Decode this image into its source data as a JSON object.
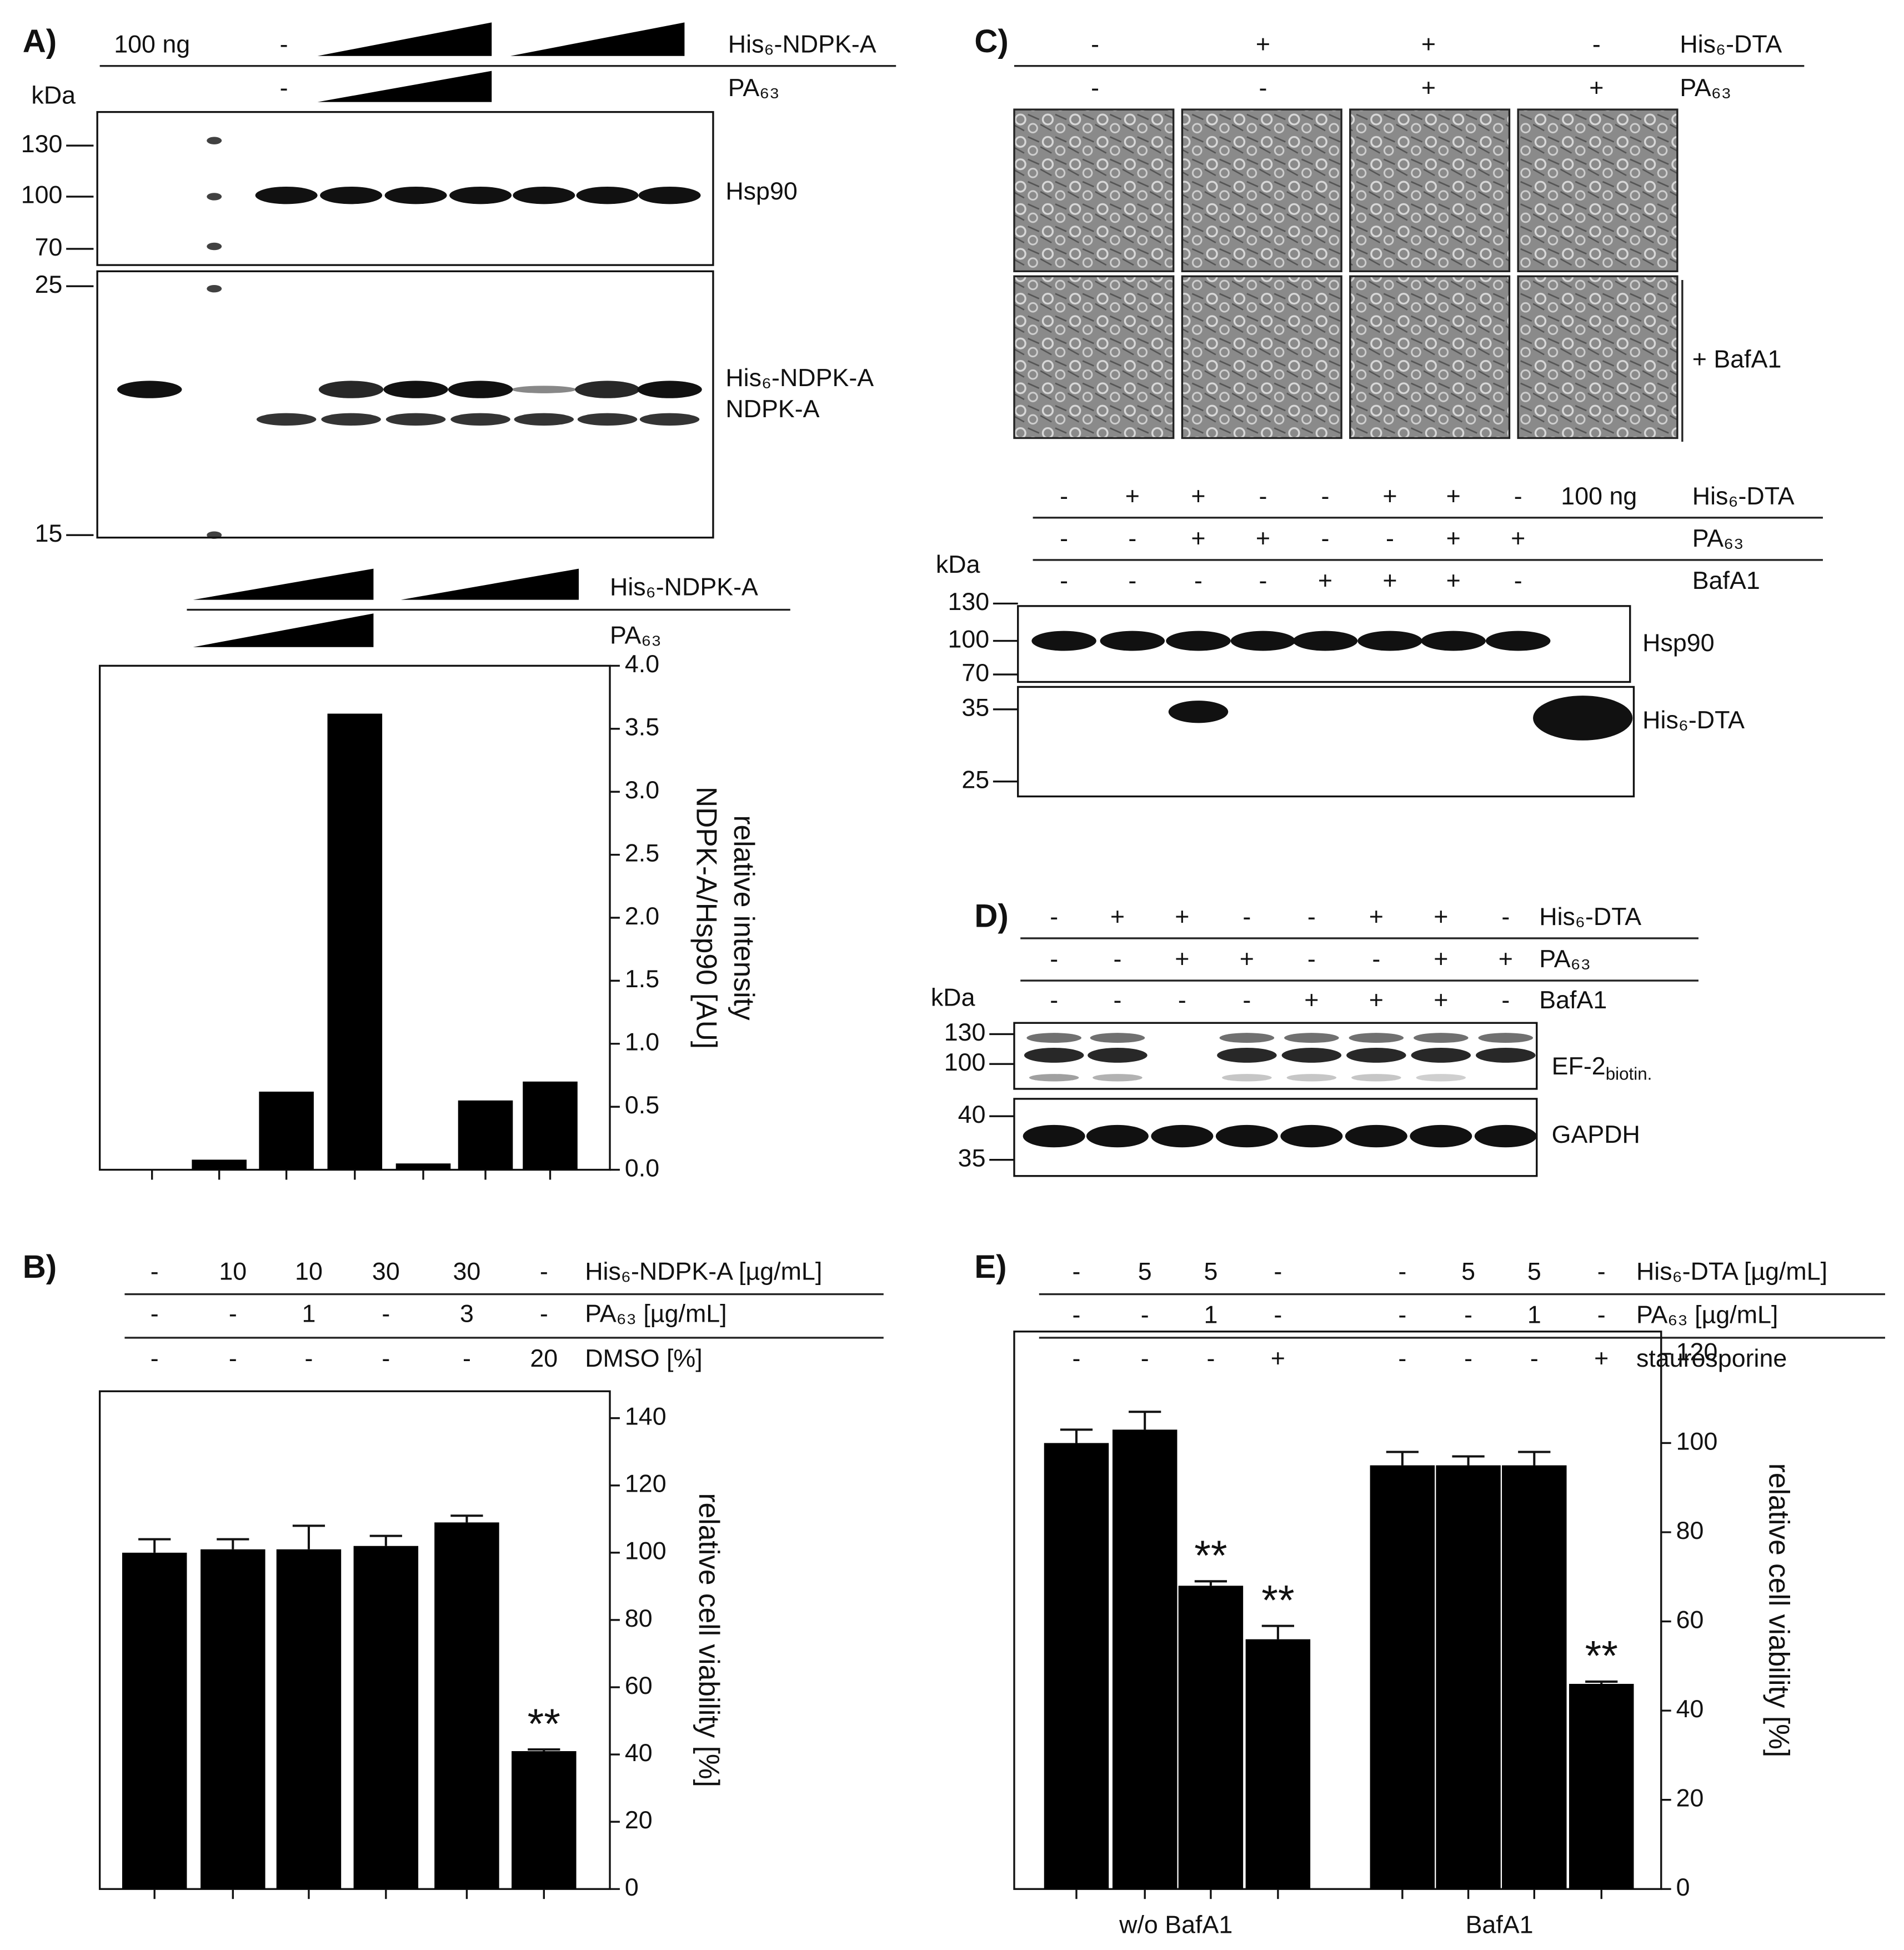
{
  "panel_a": {
    "label": "A)",
    "rows": [
      {
        "cells": [
          "100 ng",
          "-"
        ],
        "name": "His₆-NDPK-A"
      },
      {
        "cells": [
          "-"
        ],
        "name": "PA₆₃"
      }
    ],
    "kda": "kDa",
    "markers": [
      130,
      100,
      70,
      25,
      15
    ],
    "bands": [
      "Hsp90",
      "His₆-NDPK-A",
      "NDPK-A"
    ]
  },
  "chart_a_header": {
    "rows": [
      {
        "name": "His₆-NDPK-A"
      },
      {
        "name": "PA₆₃"
      }
    ]
  },
  "panel_b": {
    "label": "B)",
    "rows": [
      {
        "cells": [
          "-",
          "10",
          "10",
          "30",
          "30",
          "-"
        ],
        "name": "His₆-NDPK-A [µg/mL]"
      },
      {
        "cells": [
          "-",
          "-",
          "1",
          "-",
          "3",
          "-"
        ],
        "name": "PA₆₃ [µg/mL]"
      },
      {
        "cells": [
          "-",
          "-",
          "-",
          "-",
          "-",
          "20"
        ],
        "name": "DMSO  [%]"
      }
    ]
  },
  "panel_c": {
    "label": "C)",
    "rows": [
      {
        "cells": [
          "-",
          "+",
          "+",
          "-"
        ],
        "name": "His₆-DTA"
      },
      {
        "cells": [
          "-",
          "-",
          "+",
          "+"
        ],
        "name": "PA₆₃"
      }
    ],
    "side_label": "+ BafA1",
    "blot_rows": [
      {
        "cells": [
          "-",
          "+",
          "+",
          "-",
          "-",
          "+",
          "+",
          "-",
          "100 ng"
        ],
        "name": "His₆-DTA"
      },
      {
        "cells": [
          "-",
          "-",
          "+",
          "+",
          "-",
          "-",
          "+",
          "+"
        ],
        "name": "PA₆₃"
      },
      {
        "cells": [
          "-",
          "-",
          "-",
          "-",
          "+",
          "+",
          "+",
          "-"
        ],
        "name": "BafA1"
      }
    ],
    "kda": "kDa",
    "markers": [
      130,
      100,
      70,
      35,
      25
    ],
    "bands": [
      "Hsp90",
      "His₆-DTA"
    ]
  },
  "panel_d": {
    "label": "D)",
    "rows": [
      {
        "cells": [
          "-",
          "+",
          "+",
          "-",
          "-",
          "+",
          "+",
          "-"
        ],
        "name": "His₆-DTA"
      },
      {
        "cells": [
          "-",
          "-",
          "+",
          "+",
          "-",
          "-",
          "+",
          "+"
        ],
        "name": "PA₆₃"
      },
      {
        "cells": [
          "-",
          "-",
          "-",
          "-",
          "+",
          "+",
          "+",
          "-"
        ],
        "name": "BafA1"
      }
    ],
    "kda": "kDa",
    "markers": [
      130,
      100,
      40,
      35
    ],
    "bands": [
      {
        "text": "EF-2",
        "sub": "biotin."
      },
      "GAPDH"
    ]
  },
  "panel_e": {
    "label": "E)",
    "rows": [
      {
        "cells": [
          "-",
          "5",
          "5",
          "-",
          "-",
          "5",
          "5",
          "-"
        ],
        "name": "His₆-DTA [µg/mL]"
      },
      {
        "cells": [
          "-",
          "-",
          "1",
          "-",
          "-",
          "-",
          "1",
          "-"
        ],
        "name": "PA₆₃ [µg/mL]"
      },
      {
        "cells": [
          "-",
          "-",
          "-",
          "+",
          "-",
          "-",
          "-",
          "+"
        ],
        "name": "staurosporine"
      }
    ]
  },
  "chart_data": [
    {
      "type": "bar",
      "categories": [
        null,
        null,
        null,
        null,
        null,
        null,
        null
      ],
      "values": [
        0,
        0.08,
        0.62,
        3.62,
        0.05,
        0.55,
        0.7
      ],
      "color": "#000000",
      "ylim": [
        0,
        4
      ],
      "yticks": [
        {
          "value": 0,
          "label": "0.0"
        },
        {
          "value": 0.5,
          "label": "0.5"
        },
        {
          "value": 1,
          "label": "1.0"
        },
        {
          "value": 1.5,
          "label": "1.5"
        },
        {
          "value": 2,
          "label": "2.0"
        },
        {
          "value": 2.5,
          "label": "2.5"
        },
        {
          "value": 3,
          "label": "3.0"
        },
        {
          "value": 3.5,
          "label": "3.5"
        },
        {
          "value": 4,
          "label": "4.0"
        }
      ],
      "y_label": [
        "relative intensity",
        "NDPK-A/Hsp90 [AU]"
      ]
    },
    {
      "type": "bar",
      "categories": [
        null,
        null,
        null,
        null,
        null,
        null
      ],
      "values": [
        100,
        101,
        101,
        102,
        109,
        41
      ],
      "errors": [
        4,
        3,
        7,
        3,
        2,
        0.5
      ],
      "value_annotations": [
        null,
        null,
        null,
        null,
        null,
        "**"
      ],
      "color": "#000000",
      "ylim": [
        0,
        148
      ],
      "yticks": [
        0,
        20,
        40,
        60,
        80,
        100,
        120,
        140
      ],
      "y_label": [
        "relative cell viability [%]"
      ]
    },
    {
      "type": "bar",
      "categories": [
        null,
        null,
        null,
        null,
        null,
        null,
        null,
        null
      ],
      "groups": [
        "w/o BafA1",
        "BafA1"
      ],
      "values": [
        100,
        103,
        68,
        56,
        95,
        95,
        95,
        46
      ],
      "errors": [
        3,
        4,
        1,
        3,
        3,
        2,
        3,
        0.5
      ],
      "value_annotations": [
        null,
        null,
        "**",
        "**",
        null,
        null,
        null,
        "**"
      ],
      "color": "#000000",
      "ylim": [
        0,
        125
      ],
      "yticks": [
        0,
        20,
        40,
        60,
        80,
        100,
        120
      ],
      "y_label": [
        "relative cell viability [%]"
      ]
    }
  ]
}
